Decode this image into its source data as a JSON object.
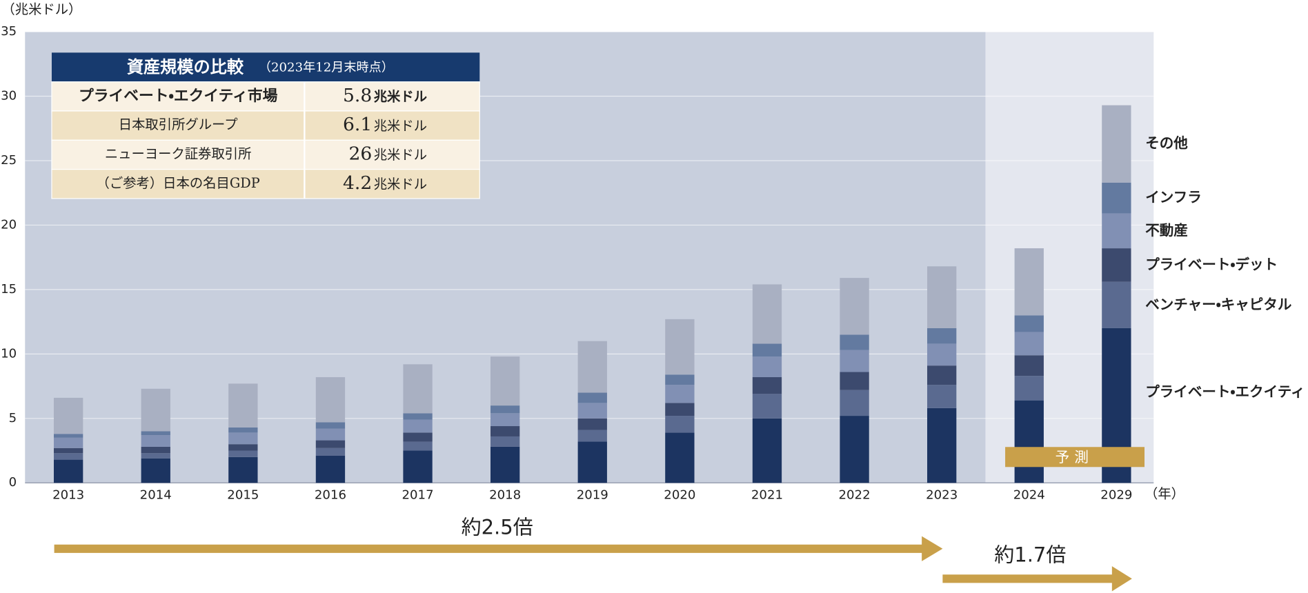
{
  "chart_data": {
    "type": "stacked_bar",
    "y_unit": "（兆米ドル）",
    "x_unit": "（年）",
    "forecast_label": "予測",
    "categories": [
      "2013",
      "2014",
      "2015",
      "2016",
      "2017",
      "2018",
      "2019",
      "2020",
      "2021",
      "2022",
      "2023",
      "2024",
      "2029"
    ],
    "forecast_from": "2024",
    "ylim": [
      0,
      35
    ],
    "yticks": [
      0,
      5,
      10,
      15,
      20,
      25,
      30,
      35
    ],
    "grid": true,
    "series": [
      {
        "name": "プライベート・エクイティ",
        "color": "#1c3461",
        "values": [
          1.8,
          1.9,
          2.0,
          2.1,
          2.5,
          2.8,
          3.2,
          3.9,
          5.0,
          5.2,
          5.8,
          6.4,
          12.0
        ]
      },
      {
        "name": "ベンチャー・キャピタル",
        "color": "#5a6a90",
        "values": [
          0.5,
          0.4,
          0.5,
          0.6,
          0.7,
          0.8,
          0.9,
          1.3,
          1.9,
          2.0,
          1.8,
          1.9,
          3.6
        ]
      },
      {
        "name": "プライベート・デット",
        "color": "#3c4a6e",
        "values": [
          0.4,
          0.5,
          0.5,
          0.6,
          0.7,
          0.8,
          0.9,
          1.0,
          1.3,
          1.4,
          1.5,
          1.6,
          2.6
        ]
      },
      {
        "name": "不動産",
        "color": "#8190b4",
        "values": [
          0.8,
          0.9,
          0.9,
          0.9,
          1.0,
          1.0,
          1.2,
          1.4,
          1.6,
          1.7,
          1.7,
          1.8,
          2.7
        ]
      },
      {
        "name": "インフラ",
        "color": "#637aa0",
        "values": [
          0.3,
          0.3,
          0.4,
          0.5,
          0.5,
          0.6,
          0.8,
          0.8,
          1.0,
          1.2,
          1.2,
          1.3,
          2.4
        ]
      },
      {
        "name": "その他",
        "color": "#a9b0c2",
        "values": [
          2.8,
          3.3,
          3.4,
          3.5,
          3.8,
          3.8,
          4.0,
          4.3,
          4.6,
          4.4,
          4.8,
          5.2,
          6.0
        ]
      }
    ],
    "annotations": [
      "約2.5倍",
      "約1.7倍"
    ],
    "table": {
      "title": "資産規模の比較",
      "subtitle": "（2023年12月末時点）",
      "rows": [
        [
          "プライベート・エクイティ市場",
          "5.8",
          "兆米ドル"
        ],
        [
          "日本取引所グループ",
          "6.1",
          "兆米ドル"
        ],
        [
          "ニューヨーク証券取引所",
          "26",
          "兆米ドル"
        ],
        [
          "（ご参考）日本の名目GDP",
          "4.2",
          "兆米ドル"
        ]
      ]
    }
  }
}
